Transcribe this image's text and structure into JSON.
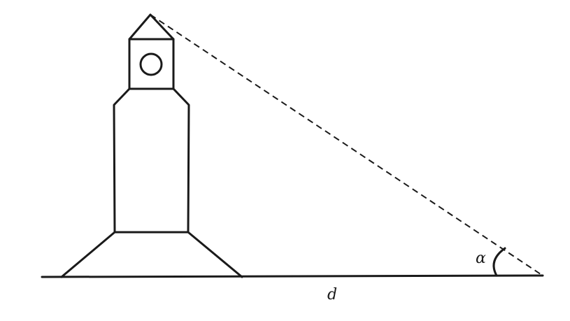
{
  "diagram": {
    "labels": {
      "distance": "d",
      "angle": "α"
    },
    "colors": {
      "ink": "#1a1a1a",
      "background": "#ffffff"
    }
  }
}
